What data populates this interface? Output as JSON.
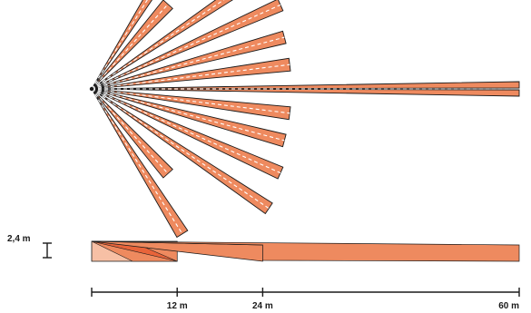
{
  "colors": {
    "beam_fill": "#ee8a5f",
    "beam_stroke": "#1a1a1a",
    "beam_center_line": "#ffffff",
    "side_dark": "#e8643a",
    "side_mid": "#ee8a5f",
    "side_light": "#f7c0a5"
  },
  "pattern": {
    "top_view": {
      "fan_beams": [
        {
          "id": "beam-1",
          "angle_deg": 58,
          "range_m": 24
        },
        {
          "id": "beam-2",
          "angle_deg": 48,
          "range_m": 16
        },
        {
          "id": "beam-3",
          "angle_deg": 34,
          "range_m": 30
        },
        {
          "id": "beam-4",
          "angle_deg": 24,
          "range_m": 29
        },
        {
          "id": "beam-5",
          "angle_deg": 15,
          "range_m": 28
        },
        {
          "id": "beam-6",
          "angle_deg": 7,
          "range_m": 28
        },
        {
          "id": "beam-7",
          "angle_deg": -7,
          "range_m": 28
        },
        {
          "id": "beam-8",
          "angle_deg": -15,
          "range_m": 28
        },
        {
          "id": "beam-9",
          "angle_deg": -24,
          "range_m": 29
        },
        {
          "id": "beam-10",
          "angle_deg": -34,
          "range_m": 30
        },
        {
          "id": "beam-11",
          "angle_deg": -48,
          "range_m": 16
        },
        {
          "id": "beam-12",
          "angle_deg": -58,
          "range_m": 24
        }
      ],
      "long_range_beam": {
        "id": "beam-long",
        "range_m": 60
      }
    },
    "side_view": {
      "zones": [
        {
          "id": "zone-12",
          "range_m": 12
        },
        {
          "id": "zone-24",
          "range_m": 24
        },
        {
          "id": "zone-60",
          "range_m": 60
        }
      ]
    }
  },
  "height_marker": {
    "label": "2,4 m"
  },
  "scale_bar": {
    "ticks": [
      {
        "value_m": 0,
        "label": ""
      },
      {
        "value_m": 12,
        "label": "12 m"
      },
      {
        "value_m": 24,
        "label": "24 m"
      },
      {
        "value_m": 60,
        "label": "60 m"
      }
    ]
  }
}
